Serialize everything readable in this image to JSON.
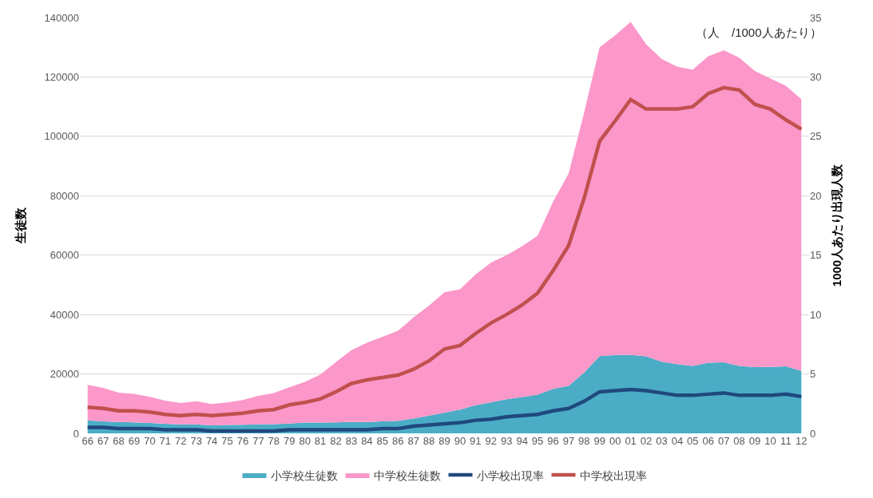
{
  "chart_data": {
    "type": "area",
    "stacked": true,
    "ylabel": "生徒数",
    "y2label": "1000人あたり出現人数",
    "categories": [
      "66",
      "67",
      "68",
      "69",
      "70",
      "71",
      "72",
      "73",
      "74",
      "75",
      "76",
      "77",
      "78",
      "79",
      "80",
      "81",
      "82",
      "83",
      "84",
      "85",
      "86",
      "87",
      "88",
      "89",
      "90",
      "91",
      "92",
      "93",
      "94",
      "95",
      "96",
      "97",
      "98",
      "99",
      "00",
      "01",
      "02",
      "03",
      "04",
      "05",
      "06",
      "07",
      "08",
      "09",
      "10",
      "11",
      "12"
    ],
    "series": [
      {
        "name": "小学校生徒数",
        "color": "#4bacc6",
        "values": [
          4400,
          4000,
          3800,
          3700,
          3500,
          3200,
          3000,
          3000,
          2700,
          2800,
          2900,
          3000,
          3100,
          3300,
          3600,
          3600,
          3700,
          3800,
          3800,
          4000,
          4200,
          5000,
          6000,
          7000,
          8000,
          9500,
          10500,
          11500,
          12200,
          13000,
          15000,
          16000,
          20500,
          26000,
          26400,
          26400,
          25900,
          24100,
          23300,
          22700,
          23800,
          23900,
          22700,
          22300,
          22400,
          22600,
          21000
        ]
      },
      {
        "name": "中学校生徒数",
        "color": "#fb97c9",
        "values": [
          11900,
          11300,
          9900,
          9600,
          8800,
          7800,
          7200,
          7800,
          7200,
          7600,
          8300,
          9600,
          10500,
          12200,
          13700,
          16200,
          20300,
          24200,
          26700,
          28500,
          30300,
          34000,
          37000,
          40500,
          40500,
          44000,
          47000,
          48500,
          50800,
          53500,
          63000,
          71500,
          87500,
          104000,
          107600,
          112100,
          105100,
          101900,
          100200,
          99800,
          103200,
          105100,
          103800,
          99700,
          97100,
          94400,
          91500
        ]
      },
      {
        "name": "小学校出現率",
        "type": "line",
        "axis": "y2",
        "color": "#1f497d",
        "values": [
          0.5,
          0.5,
          0.4,
          0.4,
          0.4,
          0.3,
          0.3,
          0.3,
          0.2,
          0.2,
          0.2,
          0.2,
          0.2,
          0.3,
          0.3,
          0.3,
          0.3,
          0.3,
          0.3,
          0.4,
          0.4,
          0.6,
          0.7,
          0.8,
          0.9,
          1.1,
          1.2,
          1.4,
          1.5,
          1.6,
          1.9,
          2.1,
          2.7,
          3.5,
          3.6,
          3.7,
          3.6,
          3.4,
          3.2,
          3.2,
          3.3,
          3.4,
          3.2,
          3.2,
          3.2,
          3.3,
          3.1
        ]
      },
      {
        "name": "中学校出現率",
        "type": "line",
        "axis": "y2",
        "color": "#c0504d",
        "values": [
          2.2,
          2.1,
          1.9,
          1.9,
          1.8,
          1.6,
          1.5,
          1.6,
          1.5,
          1.6,
          1.7,
          1.9,
          2.0,
          2.4,
          2.6,
          2.9,
          3.5,
          4.2,
          4.5,
          4.7,
          4.9,
          5.4,
          6.1,
          7.1,
          7.4,
          8.4,
          9.3,
          10.0,
          10.8,
          11.8,
          13.7,
          15.8,
          19.8,
          24.6,
          26.3,
          28.1,
          27.3,
          27.3,
          27.3,
          27.5,
          28.6,
          29.1,
          28.9,
          27.7,
          27.3,
          26.4,
          25.6
        ]
      }
    ],
    "ylim": [
      0,
      140000
    ],
    "yticks": [
      0,
      20000,
      40000,
      60000,
      80000,
      100000,
      120000,
      140000
    ],
    "y2lim": [
      0,
      35
    ],
    "y2ticks": [
      0,
      5,
      10,
      15,
      20,
      25,
      30,
      35
    ],
    "annotations": [
      "（人　/1000人あたり）"
    ],
    "grid": "y",
    "legend": "bottom",
    "line_style": "solid",
    "marker": "none"
  }
}
